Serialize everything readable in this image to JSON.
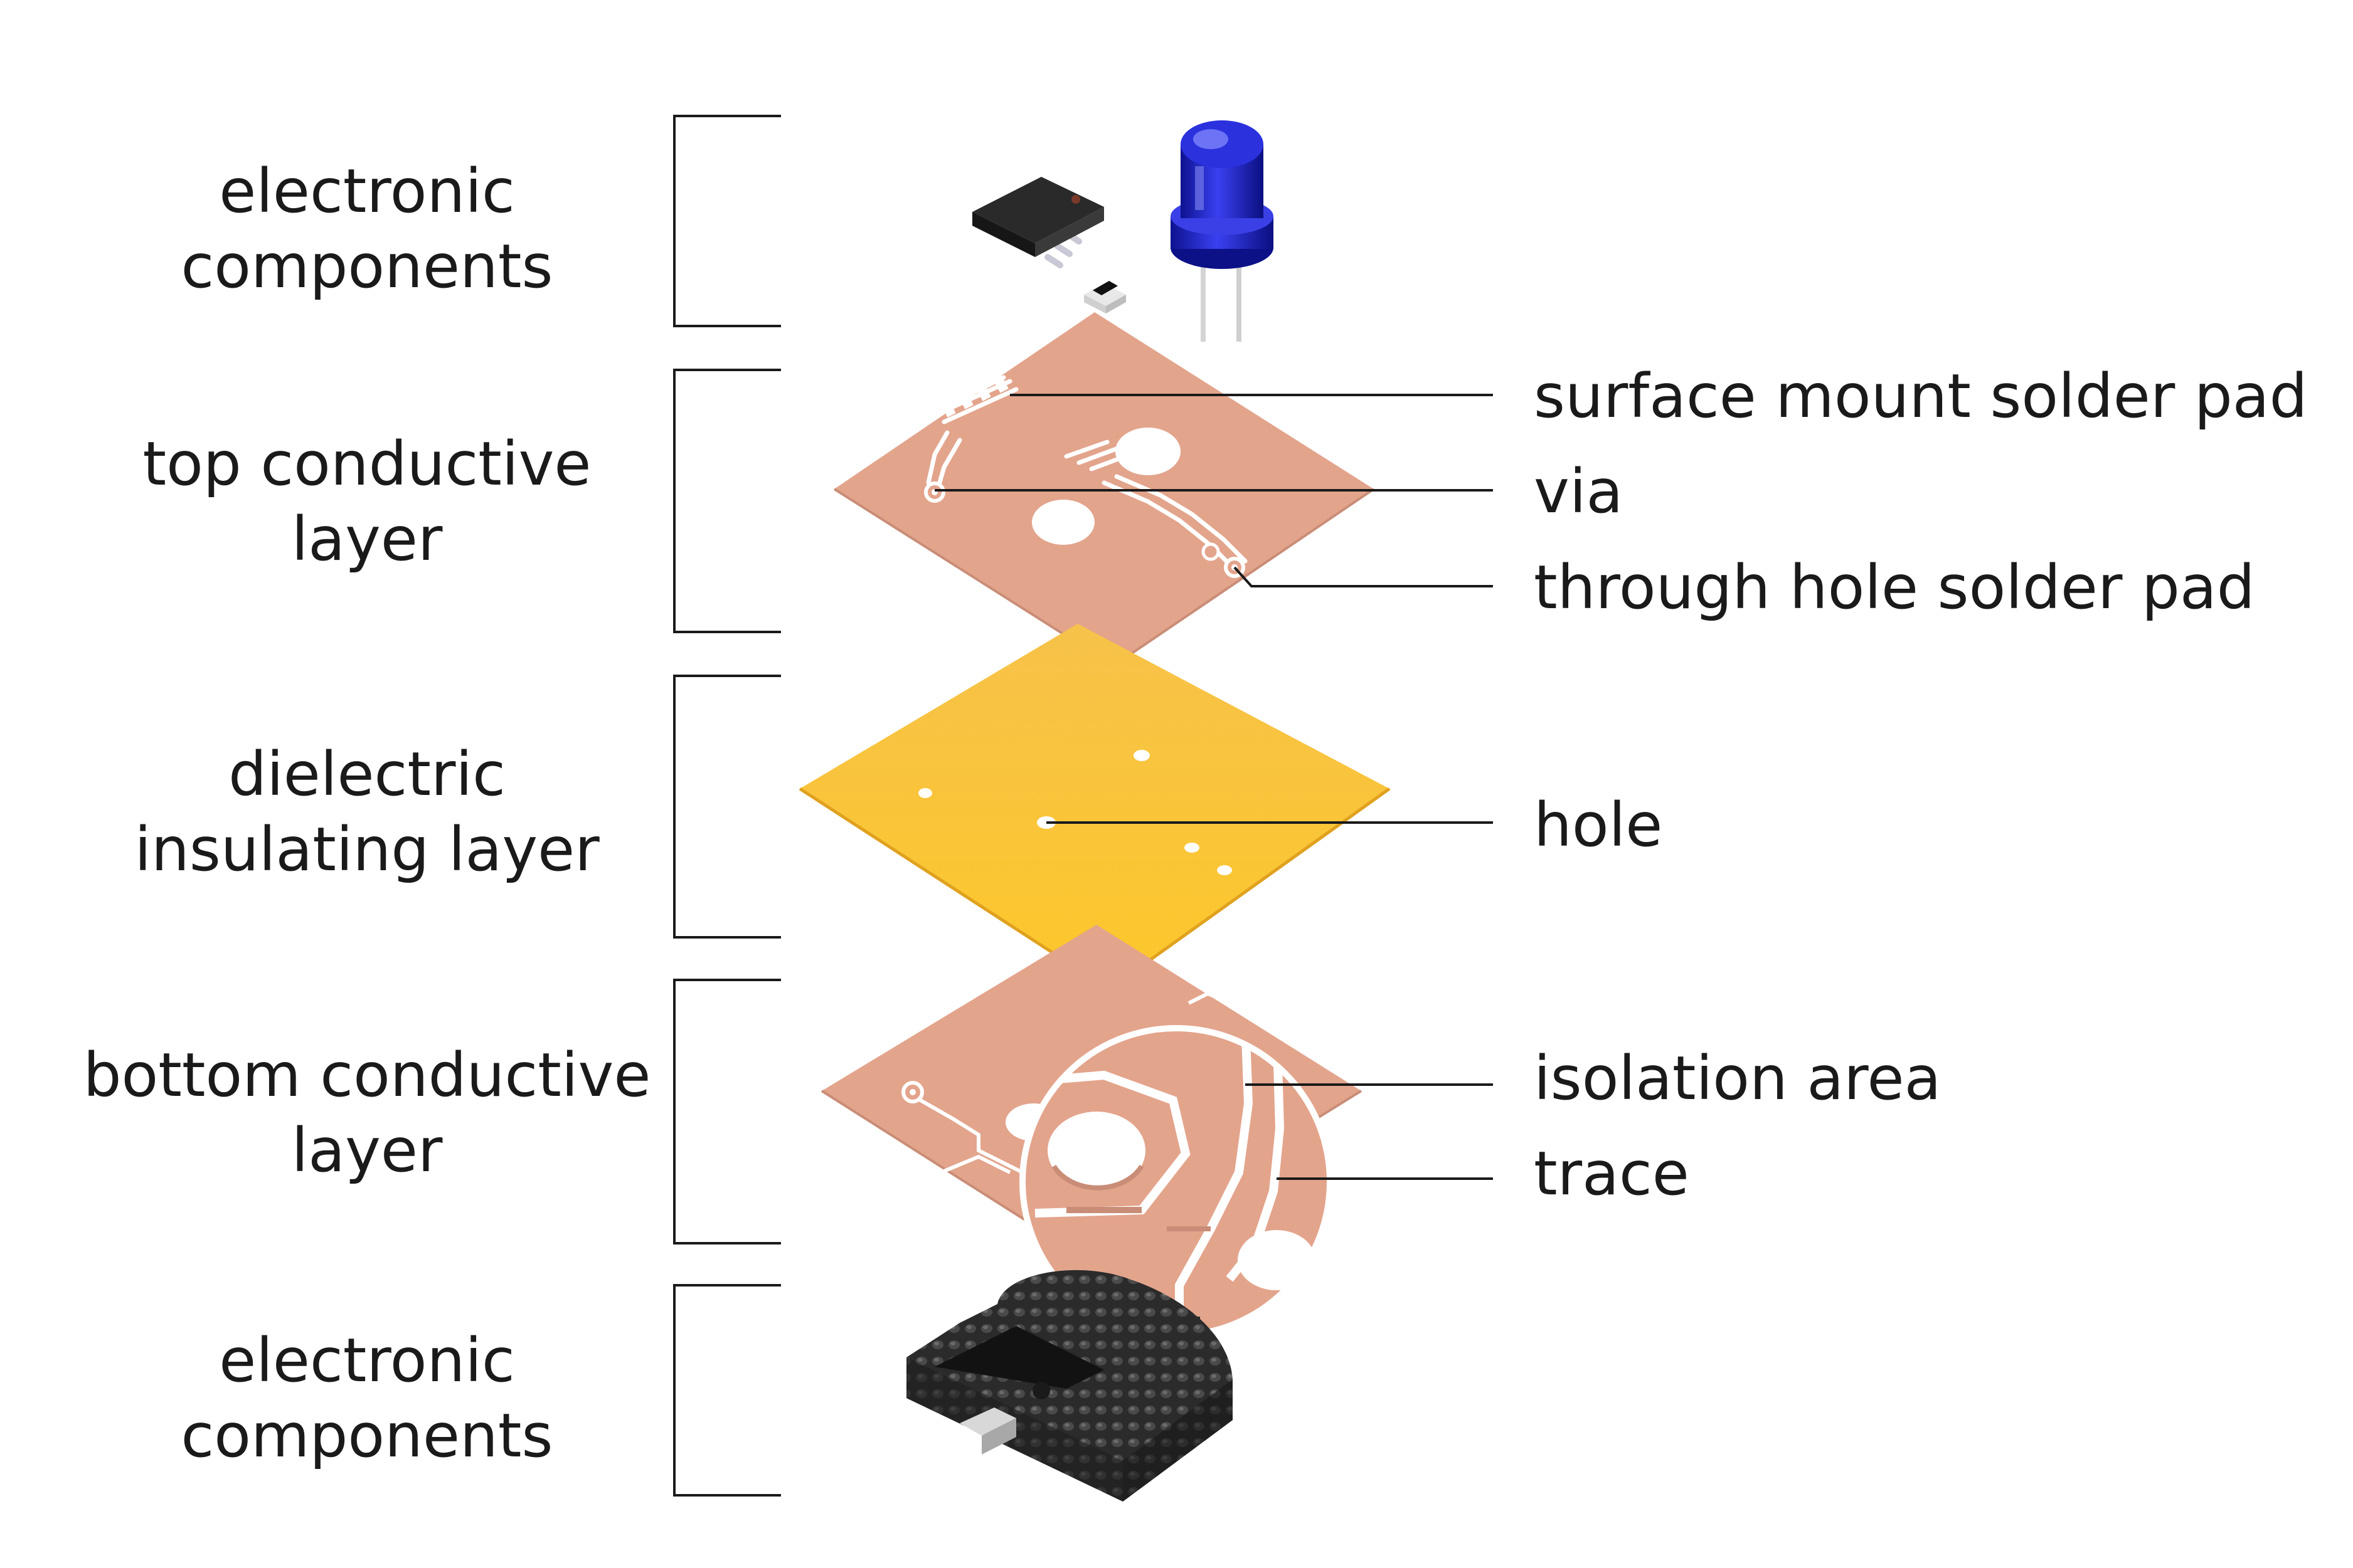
{
  "layers": [
    {
      "line1": "electronic",
      "line2": "components"
    },
    {
      "line1": "top conductive",
      "line2": "layer"
    },
    {
      "line1": "dielectric",
      "line2": "insulating layer"
    },
    {
      "line1": "bottom conductive",
      "line2": "layer"
    },
    {
      "line1": "electronic",
      "line2": "components"
    }
  ],
  "callouts": {
    "surface_mount": "surface mount solder pad",
    "via": "via",
    "through_hole": "through hole solder pad",
    "hole": "hole",
    "isolation": "isolation area",
    "trace": "trace"
  },
  "colors": {
    "copper": "#e3a48c",
    "copper_dark": "#c98d77",
    "dielectric": "#fbc13a",
    "dielectric_edge": "#e0a11f",
    "led": "#1c22c8",
    "component_black": "#2a2a2a",
    "bracket": "#1a1a1a",
    "leader": "#1a1a1a"
  },
  "icons": [
    "soic-chip-icon",
    "smd-resistor-icon",
    "led-icon",
    "coin-cell-holder-icon",
    "magnifier-circle-icon"
  ]
}
